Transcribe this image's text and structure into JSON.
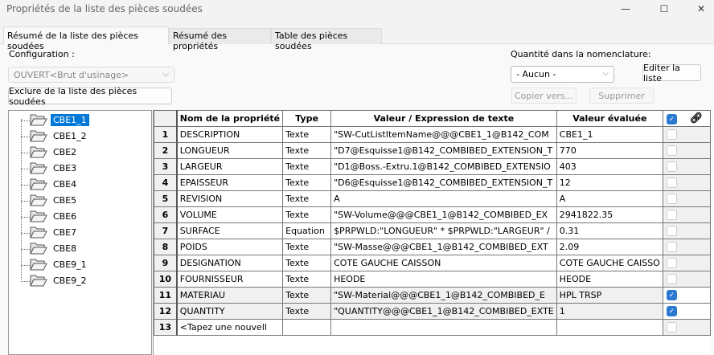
{
  "window": {
    "title": "Propriétés de la liste des pièces soudées",
    "minimize": "—",
    "maximize": "☐",
    "close": "✕"
  },
  "tabs": [
    {
      "label": "Résumé de la liste des pièces soudées",
      "active": true
    },
    {
      "label": "Résumé des propriétés",
      "active": false
    },
    {
      "label": "Table des pièces soudées",
      "active": false
    }
  ],
  "config": {
    "label": "Configuration :",
    "value": "OUVERT<Brut d'usinage>",
    "exclude_button": "Exclure de la liste des pièces soudées"
  },
  "quantity": {
    "label": "Quantité dans la nomenclature:",
    "value": "- Aucun -",
    "edit_button": "Editer la liste",
    "copy_button": "Copier vers...",
    "delete_button": "Supprimer"
  },
  "tree": {
    "items": [
      "CBE1_1",
      "CBE1_2",
      "CBE2",
      "CBE3",
      "CBE4",
      "CBE5",
      "CBE6",
      "CBE7",
      "CBE8",
      "CBE9_1",
      "CBE9_2"
    ],
    "selected": "CBE1_1"
  },
  "table": {
    "headers": {
      "name": "Nom de la propriété",
      "type": "Type",
      "value": "Valeur / Expression de texte",
      "evaluated": "Valeur évaluée",
      "link_icon": "link-icon"
    },
    "header_checked": true,
    "rows": [
      {
        "n": "1",
        "name": "DESCRIPTION",
        "type": "Texte",
        "value": "\"SW-CutListItemName@@@CBE1_1@B142_COM",
        "evaluated": "CBE1_1",
        "checked": false
      },
      {
        "n": "2",
        "name": "LONGUEUR",
        "type": "Texte",
        "value": "\"D7@Esquisse1@B142_COMBIBED_EXTENSION_T",
        "evaluated": "770",
        "checked": false
      },
      {
        "n": "3",
        "name": "LARGEUR",
        "type": "Texte",
        "value": "\"D1@Boss.-Extru.1@B142_COMBIBED_EXTENSIO",
        "evaluated": "403",
        "checked": false
      },
      {
        "n": "4",
        "name": "EPAISSEUR",
        "type": "Texte",
        "value": "\"D6@Esquisse1@B142_COMBIBED_EXTENSION_T",
        "evaluated": "12",
        "checked": false
      },
      {
        "n": "5",
        "name": "REVISION",
        "type": "Texte",
        "value": "A",
        "evaluated": "A",
        "checked": false
      },
      {
        "n": "6",
        "name": "VOLUME",
        "type": "Texte",
        "value": "\"SW-Volume@@@CBE1_1@B142_COMBIBED_EX",
        "evaluated": "2941822.35",
        "checked": false
      },
      {
        "n": "7",
        "name": "SURFACE",
        "type": "Equation",
        "value": "$PRPWLD:\"LONGUEUR\" * $PRPWLD:\"LARGEUR\" /",
        "evaluated": "0.31",
        "checked": false
      },
      {
        "n": "8",
        "name": "POIDS",
        "type": "Texte",
        "value": "\"SW-Masse@@@CBE1_1@B142_COMBIBED_EXT",
        "evaluated": "2.09",
        "checked": false
      },
      {
        "n": "9",
        "name": "DESIGNATION",
        "type": "Texte",
        "value": "COTE GAUCHE CAISSON",
        "evaluated": "COTE GAUCHE CAISSO",
        "checked": false
      },
      {
        "n": "10",
        "name": "FOURNISSEUR",
        "type": "Texte",
        "value": "HEODE",
        "evaluated": "HEODE",
        "checked": false
      },
      {
        "n": "11",
        "name": "MATERIAU",
        "type": "Texte",
        "value": "\"SW-Material@@@CBE1_1@B142_COMBIBED_E",
        "evaluated": "HPL TRSP",
        "checked": true
      },
      {
        "n": "12",
        "name": "QUANTITY",
        "type": "Texte",
        "value": "\"QUANTITY@@@CBE1_1@B142_COMBIBED_EXTE",
        "evaluated": "1",
        "checked": true
      },
      {
        "n": "13",
        "name": "<Tapez une nouvell",
        "type": "",
        "value": "",
        "evaluated": "",
        "checked": false
      }
    ]
  },
  "colors": {
    "accent": "#0078d7",
    "checkbox": "#2a78d0"
  }
}
